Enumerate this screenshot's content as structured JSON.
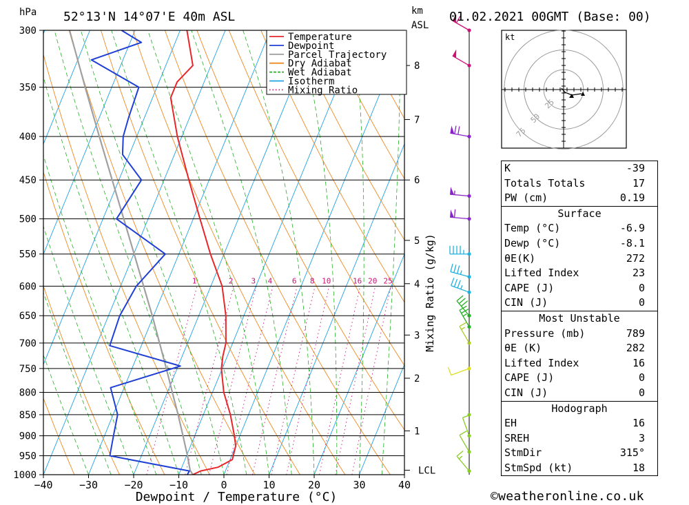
{
  "header": {
    "location": "52°13'N 14°07'E 40m ASL",
    "datetime": "01.02.2021 00GMT (Base: 00)",
    "hpa_label": "hPa",
    "km_label": "km",
    "asl_label": "ASL"
  },
  "chart_data": {
    "type": "skew-t",
    "xlabel": "Dewpoint / Temperature (°C)",
    "right_axis_label": "Mixing Ratio (g/kg)",
    "x_ticks": [
      -40,
      -30,
      -20,
      -10,
      0,
      10,
      20,
      30,
      40
    ],
    "pressure_ticks": [
      300,
      350,
      400,
      450,
      500,
      550,
      600,
      650,
      700,
      750,
      800,
      850,
      900,
      950,
      1000
    ],
    "xlim": [
      -40,
      40
    ],
    "plim": [
      1000,
      300
    ],
    "height_ticks_km": [
      {
        "label": "8",
        "p": 330
      },
      {
        "label": "7",
        "p": 382
      },
      {
        "label": "6",
        "p": 450
      },
      {
        "label": "5",
        "p": 530
      },
      {
        "label": "4",
        "p": 596
      },
      {
        "label": "3",
        "p": 685
      },
      {
        "label": "2",
        "p": 770
      },
      {
        "label": "1",
        "p": 888
      }
    ],
    "lcl": {
      "label": "LCL",
      "p": 988
    },
    "mixing_ratio_labels": [
      "1",
      "2",
      "3",
      "4",
      "6",
      "8",
      "10",
      "16",
      "20",
      "25"
    ],
    "legend": [
      {
        "name": "Temperature",
        "color": "#e8262a",
        "style": "solid"
      },
      {
        "name": "Dewpoint",
        "color": "#1f3fd6",
        "style": "solid"
      },
      {
        "name": "Parcel Trajectory",
        "color": "#a0a0a0",
        "style": "solid"
      },
      {
        "name": "Dry Adiabat",
        "color": "#ee8a22",
        "style": "solid"
      },
      {
        "name": "Wet Adiabat",
        "color": "#22b022",
        "style": "dashed"
      },
      {
        "name": "Isotherm",
        "color": "#1fa2e6",
        "style": "solid"
      },
      {
        "name": "Mixing Ratio",
        "color": "#cc1177",
        "style": "dotted"
      }
    ],
    "temperature": [
      {
        "p": 1000,
        "t": -6.9
      },
      {
        "p": 990,
        "t": -5.5
      },
      {
        "p": 980,
        "t": -2.0
      },
      {
        "p": 960,
        "t": 0.5
      },
      {
        "p": 925,
        "t": 0.0
      },
      {
        "p": 900,
        "t": -1.2
      },
      {
        "p": 850,
        "t": -4.0
      },
      {
        "p": 800,
        "t": -7.5
      },
      {
        "p": 750,
        "t": -10.2
      },
      {
        "p": 725,
        "t": -11.0
      },
      {
        "p": 700,
        "t": -11.5
      },
      {
        "p": 650,
        "t": -14.0
      },
      {
        "p": 600,
        "t": -17.5
      },
      {
        "p": 550,
        "t": -23.0
      },
      {
        "p": 500,
        "t": -28.5
      },
      {
        "p": 450,
        "t": -34.5
      },
      {
        "p": 400,
        "t": -41.0
      },
      {
        "p": 360,
        "t": -46.0
      },
      {
        "p": 345,
        "t": -46.0
      },
      {
        "p": 330,
        "t": -44.0
      },
      {
        "p": 300,
        "t": -48.5
      }
    ],
    "dewpoint": [
      {
        "p": 1000,
        "t": -8.1
      },
      {
        "p": 990,
        "t": -8.0
      },
      {
        "p": 950,
        "t": -27.0
      },
      {
        "p": 900,
        "t": -28.0
      },
      {
        "p": 850,
        "t": -29.0
      },
      {
        "p": 790,
        "t": -33.0
      },
      {
        "p": 745,
        "t": -19.5
      },
      {
        "p": 705,
        "t": -37.0
      },
      {
        "p": 650,
        "t": -37.5
      },
      {
        "p": 600,
        "t": -36.5
      },
      {
        "p": 550,
        "t": -33.0
      },
      {
        "p": 500,
        "t": -47.0
      },
      {
        "p": 450,
        "t": -45.0
      },
      {
        "p": 420,
        "t": -51.5
      },
      {
        "p": 400,
        "t": -53.0
      },
      {
        "p": 380,
        "t": -53.5
      },
      {
        "p": 350,
        "t": -54.0
      },
      {
        "p": 325,
        "t": -67.0
      },
      {
        "p": 310,
        "t": -57.5
      },
      {
        "p": 300,
        "t": -63.0
      }
    ],
    "parcel": [
      {
        "p": 1000,
        "t": -6.9
      },
      {
        "p": 988,
        "t": -7.9
      },
      {
        "p": 950,
        "t": -9.8
      },
      {
        "p": 900,
        "t": -12.6
      },
      {
        "p": 850,
        "t": -15.6
      },
      {
        "p": 800,
        "t": -18.9
      },
      {
        "p": 750,
        "t": -22.4
      },
      {
        "p": 700,
        "t": -26.2
      },
      {
        "p": 650,
        "t": -30.3
      },
      {
        "p": 600,
        "t": -34.9
      },
      {
        "p": 550,
        "t": -39.9
      },
      {
        "p": 500,
        "t": -45.4
      },
      {
        "p": 450,
        "t": -51.5
      },
      {
        "p": 400,
        "t": -58.3
      },
      {
        "p": 350,
        "t": -65.9
      },
      {
        "p": 300,
        "t": -74.5
      }
    ],
    "wind_barbs": [
      {
        "p": 300,
        "dir": 300,
        "kt": 60,
        "color": "#cc1177"
      },
      {
        "p": 330,
        "dir": 300,
        "kt": 50,
        "color": "#cc1177"
      },
      {
        "p": 400,
        "dir": 280,
        "kt": 70,
        "color": "#8a22cc"
      },
      {
        "p": 470,
        "dir": 275,
        "kt": 55,
        "color": "#8a22cc"
      },
      {
        "p": 500,
        "dir": 275,
        "kt": 60,
        "color": "#8a22cc"
      },
      {
        "p": 550,
        "dir": 270,
        "kt": 45,
        "color": "#1fb0e0"
      },
      {
        "p": 585,
        "dir": 285,
        "kt": 35,
        "color": "#1fb0e0"
      },
      {
        "p": 610,
        "dir": 290,
        "kt": 35,
        "color": "#1fb0e0"
      },
      {
        "p": 650,
        "dir": 320,
        "kt": 30,
        "color": "#22b022"
      },
      {
        "p": 670,
        "dir": 330,
        "kt": 25,
        "color": "#22b022"
      },
      {
        "p": 700,
        "dir": 330,
        "kt": 15,
        "color": "#aacc22"
      },
      {
        "p": 750,
        "dir": 250,
        "kt": 10,
        "color": "#dddd22"
      },
      {
        "p": 850,
        "dir": 0,
        "kt": 3,
        "color": "#88cc22"
      },
      {
        "p": 900,
        "dir": 340,
        "kt": 10,
        "color": "#88cc22"
      },
      {
        "p": 940,
        "dir": 330,
        "kt": 10,
        "color": "#88cc22"
      },
      {
        "p": 990,
        "dir": 320,
        "kt": 15,
        "color": "#88cc22"
      }
    ]
  },
  "hodograph": {
    "unit_label": "kt",
    "ring_labels": [
      "25",
      "50",
      "75"
    ]
  },
  "indices": [
    {
      "label": "K",
      "value": "-39"
    },
    {
      "label": "Totals Totals",
      "value": "17"
    },
    {
      "label": "PW (cm)",
      "value": "0.19"
    }
  ],
  "surface": {
    "title": "Surface",
    "rows": [
      {
        "label": "Temp (°C)",
        "value": "-6.9"
      },
      {
        "label": "Dewp (°C)",
        "value": "-8.1"
      },
      {
        "label": "θE(K)",
        "value": "272"
      },
      {
        "label": "Lifted Index",
        "value": "23"
      },
      {
        "label": "CAPE (J)",
        "value": "0"
      },
      {
        "label": "CIN (J)",
        "value": "0"
      }
    ]
  },
  "most_unstable": {
    "title": "Most Unstable",
    "rows": [
      {
        "label": "Pressure (mb)",
        "value": "789"
      },
      {
        "label": "θE (K)",
        "value": "282"
      },
      {
        "label": "Lifted Index",
        "value": "16"
      },
      {
        "label": "CAPE (J)",
        "value": "0"
      },
      {
        "label": "CIN (J)",
        "value": "0"
      }
    ]
  },
  "hodograph_stats": {
    "title": "Hodograph",
    "rows": [
      {
        "label": "EH",
        "value": "16"
      },
      {
        "label": "SREH",
        "value": "3"
      },
      {
        "label": "StmDir",
        "value": "315°"
      },
      {
        "label": "StmSpd (kt)",
        "value": "18"
      }
    ]
  },
  "credit": "©weatheronline.co.uk"
}
